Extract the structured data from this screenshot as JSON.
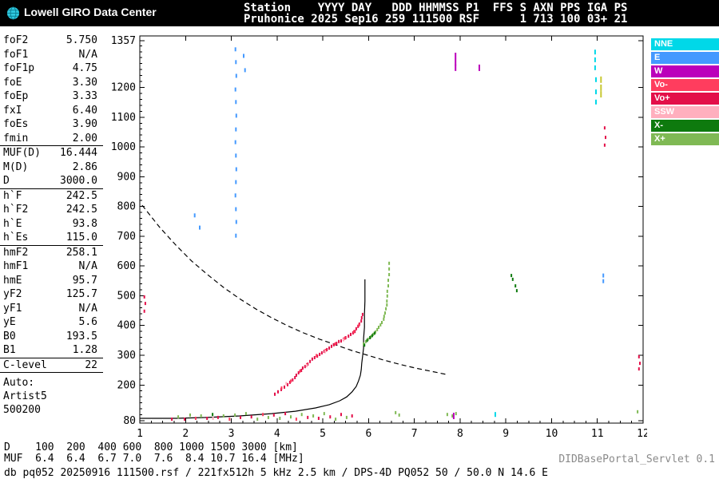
{
  "header": {
    "logo": "Lowell GIRO Data Center",
    "line1": "Station    YYYY DAY   DDD HHMMSS P1  FFS S AXN PPS IGA PS",
    "line2": "Pruhonice 2025 Sep16 259 111500 RSF      1 713 100 03+ 21"
  },
  "sidebar": {
    "groups": [
      {
        "rows": [
          {
            "label": "foF2",
            "value": "5.750"
          },
          {
            "label": "foF1",
            "value": "N/A"
          },
          {
            "label": "foF1p",
            "value": "4.75"
          },
          {
            "label": "foE",
            "value": "3.30"
          },
          {
            "label": "foEp",
            "value": "3.33"
          },
          {
            "label": "fxI",
            "value": "6.40"
          },
          {
            "label": "foEs",
            "value": "3.90"
          },
          {
            "label": "fmin",
            "value": "2.00"
          }
        ]
      },
      {
        "rows": [
          {
            "label": "MUF(D)",
            "value": "16.444"
          },
          {
            "label": "M(D)",
            "value": "2.86"
          },
          {
            "label": "D",
            "value": "3000.0"
          }
        ]
      },
      {
        "rows": [
          {
            "label": "h`F",
            "value": "242.5"
          },
          {
            "label": "h`F2",
            "value": "242.5"
          },
          {
            "label": "h`E",
            "value": "93.8"
          },
          {
            "label": "h`Es",
            "value": "115.0"
          }
        ]
      },
      {
        "rows": [
          {
            "label": "hmF2",
            "value": "258.1"
          },
          {
            "label": "hmF1",
            "value": "N/A"
          },
          {
            "label": "hmE",
            "value": "95.7"
          },
          {
            "label": "yF2",
            "value": "125.7"
          },
          {
            "label": "yF1",
            "value": "N/A"
          },
          {
            "label": "yE",
            "value": "5.6"
          },
          {
            "label": "B0",
            "value": "193.5"
          },
          {
            "label": "B1",
            "value": "1.28"
          }
        ]
      },
      {
        "rows": [
          {
            "label": "C-level",
            "value": "22"
          }
        ]
      }
    ],
    "auto_label": "Auto:",
    "auto_lines": [
      "Artist5",
      "500200"
    ]
  },
  "legend": {
    "items": [
      {
        "label": "NNE",
        "color": "#00D8E8"
      },
      {
        "label": "E",
        "color": "#4499FF"
      },
      {
        "label": "W",
        "color": "#BB00BB"
      },
      {
        "label": "Vo-",
        "color": "#FF3D5E"
      },
      {
        "label": "Vo+",
        "color": "#E31049"
      },
      {
        "label": "SSW",
        "color": "#FFAFBE"
      },
      {
        "label": "X-",
        "color": "#0E7A0E"
      },
      {
        "label": "X+",
        "color": "#7FB954"
      }
    ]
  },
  "chart_data": {
    "type": "scatter",
    "x_range": [
      1,
      12
    ],
    "y_range": [
      80,
      1357
    ],
    "x_ticks": [
      1,
      2,
      3,
      4,
      5,
      6,
      7,
      8,
      9,
      10,
      11,
      12
    ],
    "y_tick_labels": [
      1357,
      1200,
      1100,
      1000,
      900,
      800,
      700,
      600,
      500,
      400,
      300,
      200,
      80
    ],
    "x_unit": "MHz",
    "y_unit": "km",
    "curves": [
      {
        "name": "profile-curve-dashed",
        "style": "dashed",
        "color": "#000000",
        "points": [
          [
            1.05,
            804
          ],
          [
            1.44,
            729
          ],
          [
            1.79,
            670
          ],
          [
            2.13,
            617
          ],
          [
            2.48,
            571
          ],
          [
            2.83,
            528
          ],
          [
            3.18,
            490
          ],
          [
            3.53,
            456
          ],
          [
            3.88,
            426
          ],
          [
            4.23,
            399
          ],
          [
            4.58,
            375
          ],
          [
            4.93,
            354
          ],
          [
            5.28,
            335
          ],
          [
            5.63,
            316
          ],
          [
            5.98,
            300
          ],
          [
            6.33,
            284
          ],
          [
            6.67,
            270
          ],
          [
            7.02,
            257
          ],
          [
            7.37,
            246
          ],
          [
            7.69,
            236
          ]
        ]
      },
      {
        "name": "o-trace-model-curve",
        "style": "solid",
        "color": "#000000",
        "points": [
          [
            1.0,
            88
          ],
          [
            1.79,
            88
          ],
          [
            2.48,
            91
          ],
          [
            3.18,
            96
          ],
          [
            3.88,
            104
          ],
          [
            4.4,
            112
          ],
          [
            4.84,
            123
          ],
          [
            5.14,
            134
          ],
          [
            5.37,
            147
          ],
          [
            5.52,
            160
          ],
          [
            5.64,
            177
          ],
          [
            5.73,
            195
          ],
          [
            5.78,
            214
          ],
          [
            5.82,
            233
          ],
          [
            5.84,
            252
          ],
          [
            5.85,
            273
          ],
          [
            5.87,
            297
          ],
          [
            5.89,
            324
          ],
          [
            5.89,
            356
          ],
          [
            5.91,
            394
          ],
          [
            5.91,
            437
          ],
          [
            5.92,
            482
          ],
          [
            5.92,
            528
          ],
          [
            5.92,
            555
          ]
        ]
      }
    ],
    "scatter": [
      {
        "name": "echo-points-vo-plus",
        "color": "#E31049",
        "dot_h": 4,
        "points": [
          [
            3.95,
            169
          ],
          [
            4.02,
            177
          ],
          [
            4.09,
            185
          ],
          [
            4.16,
            193
          ],
          [
            4.23,
            201
          ],
          [
            4.28,
            209
          ],
          [
            4.34,
            217
          ],
          [
            4.39,
            225
          ],
          [
            4.42,
            233
          ],
          [
            4.47,
            241
          ],
          [
            4.53,
            249
          ],
          [
            4.56,
            257
          ],
          [
            4.61,
            262
          ],
          [
            4.67,
            270
          ],
          [
            4.72,
            279
          ],
          [
            4.77,
            287
          ],
          [
            4.82,
            292
          ],
          [
            4.88,
            297
          ],
          [
            4.93,
            303
          ],
          [
            4.98,
            308
          ],
          [
            5.03,
            313
          ],
          [
            5.09,
            319
          ],
          [
            5.14,
            324
          ],
          [
            5.19,
            330
          ],
          [
            5.24,
            335
          ],
          [
            5.3,
            340
          ],
          [
            5.35,
            346
          ],
          [
            5.4,
            348
          ],
          [
            5.45,
            354
          ],
          [
            5.5,
            359
          ],
          [
            5.56,
            364
          ],
          [
            5.61,
            370
          ],
          [
            5.66,
            375
          ],
          [
            5.7,
            380
          ],
          [
            5.73,
            389
          ],
          [
            5.77,
            397
          ],
          [
            5.8,
            405
          ],
          [
            5.84,
            415
          ],
          [
            5.85,
            426
          ],
          [
            5.87,
            437
          ],
          [
            1.7,
            85
          ],
          [
            1.98,
            85
          ],
          [
            2.47,
            88
          ],
          [
            2.71,
            91
          ],
          [
            3.2,
            91
          ],
          [
            3.44,
            93
          ],
          [
            3.93,
            99
          ],
          [
            4.18,
            104
          ],
          [
            4.67,
            91
          ],
          [
            4.91,
            88
          ],
          [
            5.16,
            93
          ],
          [
            5.4,
            101
          ],
          [
            5.64,
            96
          ],
          [
            1.1,
            496
          ],
          [
            1.12,
            474
          ],
          [
            1.1,
            448
          ],
          [
            11.16,
            1064
          ],
          [
            11.18,
            1032
          ],
          [
            11.16,
            1006
          ],
          [
            11.91,
            295
          ],
          [
            11.93,
            273
          ],
          [
            11.91,
            254
          ]
        ]
      },
      {
        "name": "echo-points-vo-minus",
        "color": "#FF3D5E",
        "dot_h": 4,
        "points": [
          [
            4.1,
            190
          ],
          [
            4.3,
            213
          ],
          [
            4.5,
            247
          ],
          [
            4.65,
            268
          ],
          [
            4.86,
            299
          ],
          [
            5.06,
            316
          ],
          [
            5.27,
            338
          ],
          [
            5.48,
            357
          ],
          [
            5.68,
            379
          ],
          [
            5.79,
            401
          ],
          [
            2.22,
            88
          ],
          [
            2.96,
            85
          ],
          [
            3.69,
            101
          ],
          [
            4.42,
            85
          ]
        ]
      },
      {
        "name": "echo-points-x-plus",
        "color": "#7FB954",
        "dot_h": 4,
        "points": [
          [
            5.89,
            338
          ],
          [
            5.94,
            346
          ],
          [
            5.99,
            354
          ],
          [
            6.05,
            362
          ],
          [
            6.1,
            370
          ],
          [
            6.15,
            378
          ],
          [
            6.19,
            386
          ],
          [
            6.22,
            394
          ],
          [
            6.26,
            402
          ],
          [
            6.29,
            410
          ],
          [
            6.33,
            421
          ],
          [
            6.34,
            431
          ],
          [
            6.36,
            442
          ],
          [
            6.38,
            456
          ],
          [
            6.4,
            469
          ],
          [
            6.4,
            482
          ],
          [
            6.41,
            499
          ],
          [
            6.41,
            515
          ],
          [
            6.43,
            533
          ],
          [
            6.43,
            552
          ],
          [
            6.45,
            571
          ],
          [
            6.45,
            590
          ],
          [
            6.45,
            609
          ],
          [
            1.84,
            93
          ],
          [
            2.1,
            99
          ],
          [
            2.34,
            96
          ],
          [
            2.83,
            96
          ],
          [
            3.08,
            99
          ],
          [
            3.32,
            104
          ],
          [
            3.57,
            85
          ],
          [
            3.81,
            91
          ],
          [
            4.06,
            88
          ],
          [
            4.3,
            93
          ],
          [
            4.54,
            101
          ],
          [
            4.79,
            96
          ],
          [
            5.03,
            104
          ],
          [
            5.28,
            85
          ],
          [
            5.52,
            91
          ],
          [
            6.59,
            107
          ],
          [
            6.67,
            99
          ],
          [
            7.72,
            101
          ],
          [
            7.83,
            96
          ],
          [
            7.91,
            104
          ],
          [
            11.88,
            110
          ]
        ]
      },
      {
        "name": "echo-points-x-minus",
        "color": "#0E7A0E",
        "dot_h": 4,
        "points": [
          [
            5.91,
            334
          ],
          [
            5.97,
            350
          ],
          [
            6.03,
            359
          ],
          [
            6.08,
            366
          ],
          [
            6.13,
            374
          ],
          [
            9.12,
            568
          ],
          [
            9.15,
            555
          ],
          [
            9.21,
            533
          ],
          [
            9.24,
            517
          ],
          [
            2.59,
            101
          ]
        ]
      },
      {
        "name": "echo-points-ssw",
        "color": "#FFAFBE",
        "dot_h": 4,
        "points": [
          [
            4.2,
            205
          ],
          [
            4.65,
            265
          ],
          [
            5.05,
            312
          ],
          [
            5.45,
            352
          ],
          [
            2.6,
            88
          ]
        ]
      },
      {
        "name": "echo-points-e",
        "color": "#4499FF",
        "dot_h": 5,
        "points": [
          [
            3.09,
            1328
          ],
          [
            3.1,
            1285
          ],
          [
            3.11,
            1239
          ],
          [
            3.09,
            1193
          ],
          [
            3.1,
            1151
          ],
          [
            3.11,
            1105
          ],
          [
            3.1,
            1059
          ],
          [
            3.09,
            1016
          ],
          [
            3.1,
            971
          ],
          [
            3.11,
            925
          ],
          [
            3.1,
            882
          ],
          [
            3.09,
            837
          ],
          [
            3.1,
            791
          ],
          [
            3.11,
            748
          ],
          [
            3.1,
            702
          ],
          [
            3.27,
            1306
          ],
          [
            3.3,
            1258
          ],
          [
            2.2,
            770
          ],
          [
            2.31,
            729
          ],
          [
            11.13,
            568
          ],
          [
            11.13,
            549
          ]
        ]
      },
      {
        "name": "echo-points-nne",
        "color": "#00D8E8",
        "dot_h": 6,
        "points": [
          [
            10.95,
            1319
          ],
          [
            10.95,
            1293
          ],
          [
            10.95,
            1266
          ],
          [
            10.97,
            1226
          ],
          [
            10.97,
            1185
          ],
          [
            10.97,
            1151
          ],
          [
            8.77,
            101
          ]
        ]
      },
      {
        "name": "echo-points-w",
        "color": "#BB00BB",
        "dot_h": 8,
        "points": [
          [
            7.9,
            1306
          ],
          [
            7.9,
            1285
          ],
          [
            7.9,
            1266
          ],
          [
            8.42,
            1266
          ],
          [
            7.86,
            96
          ]
        ]
      },
      {
        "name": "echo-points-yellow-noise",
        "color": "#C8C832",
        "dot_h": 8,
        "points": [
          [
            11.08,
            1226
          ],
          [
            11.08,
            1199
          ],
          [
            11.08,
            1177
          ]
        ]
      }
    ]
  },
  "muf_table": {
    "d_label": "D",
    "muf_label": "MUF",
    "d_values": [
      "100",
      "200",
      "400",
      "600",
      "800",
      "1000",
      "1500",
      "3000"
    ],
    "d_unit": "[km]",
    "muf_values": [
      "6.4",
      "6.4",
      "6.7",
      "7.0",
      "7.6",
      "8.4",
      "10.7",
      "16.4"
    ],
    "muf_unit": "[MHz]"
  },
  "status": {
    "line": "db pq052 20250916 111500.rsf / 221fx512h 5 kHz 2.5 km / DPS-4D PQ052 50 / 50.0 N 14.6 E",
    "servlet": "DIDBasePortal_Servlet 0.1"
  }
}
